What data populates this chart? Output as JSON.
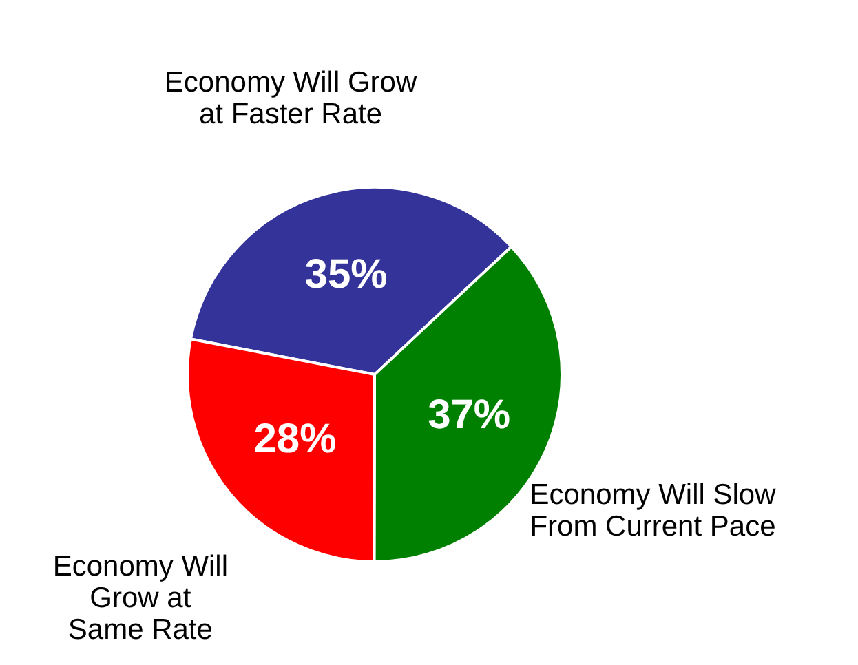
{
  "chart_data": {
    "type": "pie",
    "categories": [
      "Economy Will Grow\nat Faster Rate",
      "Economy Will Slow\nFrom Current Pace",
      "Economy Will\nGrow at\nSame Rate"
    ],
    "values": [
      35,
      37,
      28
    ],
    "value_labels": [
      "35%",
      "37%",
      "28%"
    ],
    "colors": [
      "#333399",
      "#008000",
      "#ff0000"
    ]
  }
}
